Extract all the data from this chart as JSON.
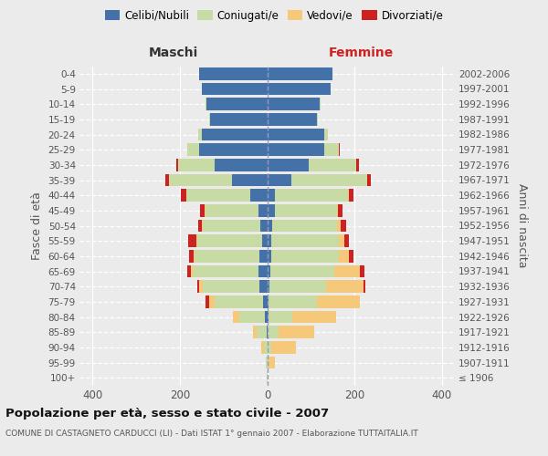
{
  "age_groups": [
    "100+",
    "95-99",
    "90-94",
    "85-89",
    "80-84",
    "75-79",
    "70-74",
    "65-69",
    "60-64",
    "55-59",
    "50-54",
    "45-49",
    "40-44",
    "35-39",
    "30-34",
    "25-29",
    "20-24",
    "15-19",
    "10-14",
    "5-9",
    "0-4"
  ],
  "birth_years": [
    "≤ 1906",
    "1907-1911",
    "1912-1916",
    "1917-1921",
    "1922-1926",
    "1927-1931",
    "1932-1936",
    "1937-1941",
    "1942-1946",
    "1947-1951",
    "1952-1956",
    "1957-1961",
    "1962-1966",
    "1967-1971",
    "1972-1976",
    "1977-1981",
    "1982-1986",
    "1987-1991",
    "1992-1996",
    "1997-2001",
    "2002-2006"
  ],
  "maschi": {
    "celibi": [
      0,
      0,
      0,
      2,
      5,
      10,
      18,
      20,
      18,
      12,
      15,
      20,
      38,
      80,
      120,
      155,
      150,
      130,
      140,
      150,
      155
    ],
    "coniugati": [
      1,
      3,
      8,
      22,
      58,
      110,
      130,
      150,
      148,
      148,
      132,
      122,
      148,
      145,
      85,
      28,
      8,
      2,
      2,
      0,
      0
    ],
    "vedovi": [
      0,
      1,
      5,
      8,
      15,
      12,
      8,
      5,
      3,
      2,
      2,
      1,
      0,
      0,
      0,
      0,
      0,
      0,
      0,
      0,
      0
    ],
    "divorziati": [
      0,
      0,
      0,
      0,
      0,
      10,
      5,
      8,
      10,
      18,
      10,
      10,
      12,
      8,
      3,
      0,
      0,
      0,
      0,
      0,
      0
    ]
  },
  "femmine": {
    "nubili": [
      0,
      0,
      0,
      2,
      3,
      3,
      5,
      8,
      10,
      10,
      12,
      18,
      18,
      55,
      95,
      130,
      130,
      115,
      120,
      145,
      150
    ],
    "coniugate": [
      1,
      3,
      10,
      25,
      55,
      110,
      130,
      145,
      155,
      155,
      148,
      142,
      168,
      175,
      110,
      35,
      10,
      2,
      2,
      0,
      0
    ],
    "vedove": [
      0,
      15,
      55,
      80,
      100,
      100,
      85,
      60,
      22,
      12,
      8,
      3,
      1,
      0,
      0,
      0,
      0,
      0,
      0,
      0,
      0
    ],
    "divorziate": [
      0,
      0,
      0,
      0,
      0,
      0,
      5,
      10,
      10,
      10,
      12,
      10,
      10,
      8,
      5,
      2,
      0,
      0,
      0,
      0,
      0
    ]
  },
  "colors": {
    "celibi": "#4472a8",
    "coniugati": "#c8dba4",
    "vedovi": "#f5c87a",
    "divorziati": "#cc2222"
  },
  "xlim": 430,
  "title": "Popolazione per età, sesso e stato civile - 2007",
  "subtitle": "COMUNE DI CASTAGNETO CARDUCCI (LI) - Dati ISTAT 1° gennaio 2007 - Elaborazione TUTTAITALIA.IT",
  "ylabel_left": "Fasce di età",
  "ylabel_right": "Anni di nascita",
  "xlabel_left": "Maschi",
  "xlabel_right": "Femmine",
  "bg_color": "#ebebeb",
  "plot_bg": "#ebebeb"
}
